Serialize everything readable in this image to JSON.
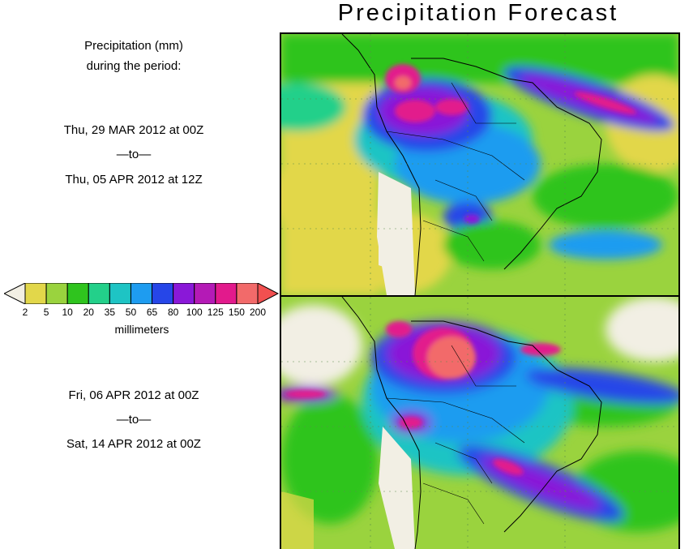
{
  "title": "Precipitation Forecast",
  "legend_heading": [
    "Precipitation (mm)",
    "during the period:"
  ],
  "period1": {
    "start": "Thu, 29 MAR 2012 at 00Z",
    "sep": "—to—",
    "end": "Thu, 05 APR 2012 at 12Z"
  },
  "period2": {
    "start": "Fri, 06 APR 2012 at 00Z",
    "sep": "—to—",
    "end": "Sat, 14 APR 2012 at 00Z"
  },
  "colorbar": {
    "units": "millimeters",
    "labels": [
      "2",
      "5",
      "10",
      "20",
      "35",
      "50",
      "65",
      "80",
      "100",
      "125",
      "150",
      "200"
    ],
    "colors": [
      "#f2efe4",
      "#e2d74a",
      "#9ad33e",
      "#2fc41e",
      "#23d08a",
      "#1ec4c4",
      "#1e9cf0",
      "#2646e8",
      "#8a18d8",
      "#b41ab6",
      "#e21a8c",
      "#f26a6a"
    ]
  }
}
